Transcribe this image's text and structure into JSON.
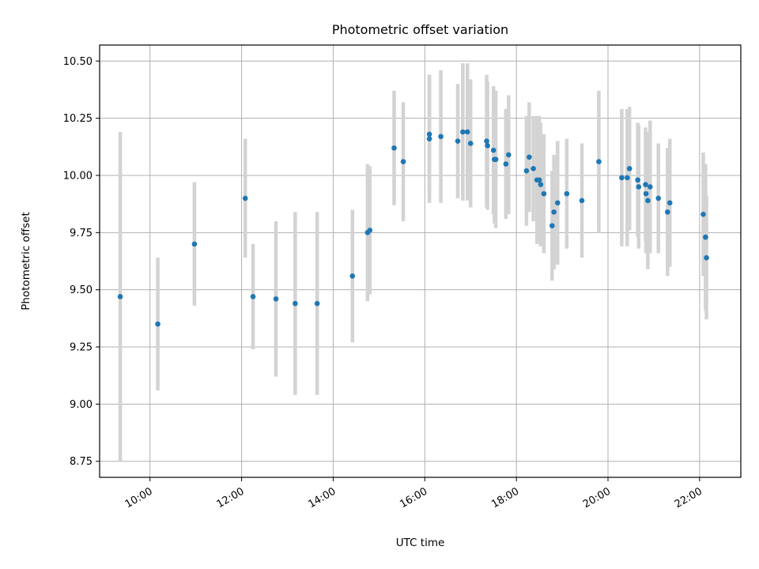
{
  "chart_data": {
    "type": "scatter",
    "title": "Photometric offset variation",
    "xlabel": "UTC time",
    "ylabel": "Photometric offset",
    "grid": true,
    "x_unit": "hours (UTC)",
    "xlim": [
      8.9,
      22.9
    ],
    "ylim": [
      8.68,
      10.57
    ],
    "x_ticks": [
      10,
      12,
      14,
      16,
      18,
      20,
      22
    ],
    "x_tick_labels": [
      "10:00",
      "12:00",
      "14:00",
      "16:00",
      "18:00",
      "20:00",
      "22:00"
    ],
    "y_ticks": [
      8.75,
      9.0,
      9.25,
      9.5,
      9.75,
      10.0,
      10.25,
      10.5
    ],
    "y_tick_labels": [
      "8.75",
      "9.00",
      "9.25",
      "9.50",
      "9.75",
      "10.00",
      "10.25",
      "10.50"
    ],
    "colors": {
      "points": "#1f77b4",
      "errorbars": "#d3d3d3"
    },
    "series": [
      {
        "x": [
          9.35,
          10.17,
          10.97,
          12.08,
          12.25,
          12.75,
          13.17,
          13.65,
          14.42,
          14.75,
          14.8,
          15.33,
          15.53,
          16.1,
          16.1,
          16.35,
          16.72,
          16.83,
          16.93,
          17.0,
          17.35,
          17.37,
          17.5,
          17.55,
          17.52,
          17.77,
          17.83,
          18.22,
          18.28,
          18.37,
          18.45,
          18.5,
          18.53,
          18.6,
          18.78,
          18.82,
          18.9,
          19.1,
          19.43,
          19.8,
          20.3,
          20.42,
          20.47,
          20.65,
          20.67,
          20.82,
          20.83,
          20.87,
          20.92,
          21.1,
          21.3,
          21.35,
          22.08,
          22.13,
          22.15
        ],
        "y": [
          9.47,
          9.35,
          9.7,
          9.9,
          9.47,
          9.46,
          9.44,
          9.44,
          9.56,
          9.75,
          9.76,
          10.12,
          10.06,
          10.18,
          10.16,
          10.17,
          10.15,
          10.19,
          10.19,
          10.14,
          10.15,
          10.13,
          10.11,
          10.07,
          10.07,
          10.05,
          10.09,
          10.02,
          10.08,
          10.03,
          9.98,
          9.98,
          9.96,
          9.92,
          9.78,
          9.84,
          9.88,
          9.92,
          9.89,
          10.06,
          9.99,
          9.99,
          10.03,
          9.98,
          9.95,
          9.96,
          9.92,
          9.89,
          9.95,
          9.9,
          9.84,
          9.88,
          9.83,
          9.73,
          9.64
        ],
        "err": [
          0.72,
          0.29,
          0.27,
          0.26,
          0.23,
          0.34,
          0.4,
          0.4,
          0.29,
          0.3,
          0.28,
          0.25,
          0.26,
          0.26,
          0.28,
          0.29,
          0.25,
          0.3,
          0.3,
          0.28,
          0.29,
          0.28,
          0.28,
          0.3,
          0.28,
          0.24,
          0.26,
          0.24,
          0.24,
          0.23,
          0.28,
          0.28,
          0.27,
          0.26,
          0.24,
          0.25,
          0.27,
          0.24,
          0.25,
          0.31,
          0.3,
          0.3,
          0.27,
          0.25,
          0.27,
          0.25,
          0.26,
          0.3,
          0.29,
          0.24,
          0.28,
          0.28,
          0.27,
          0.32,
          0.27
        ]
      }
    ]
  }
}
